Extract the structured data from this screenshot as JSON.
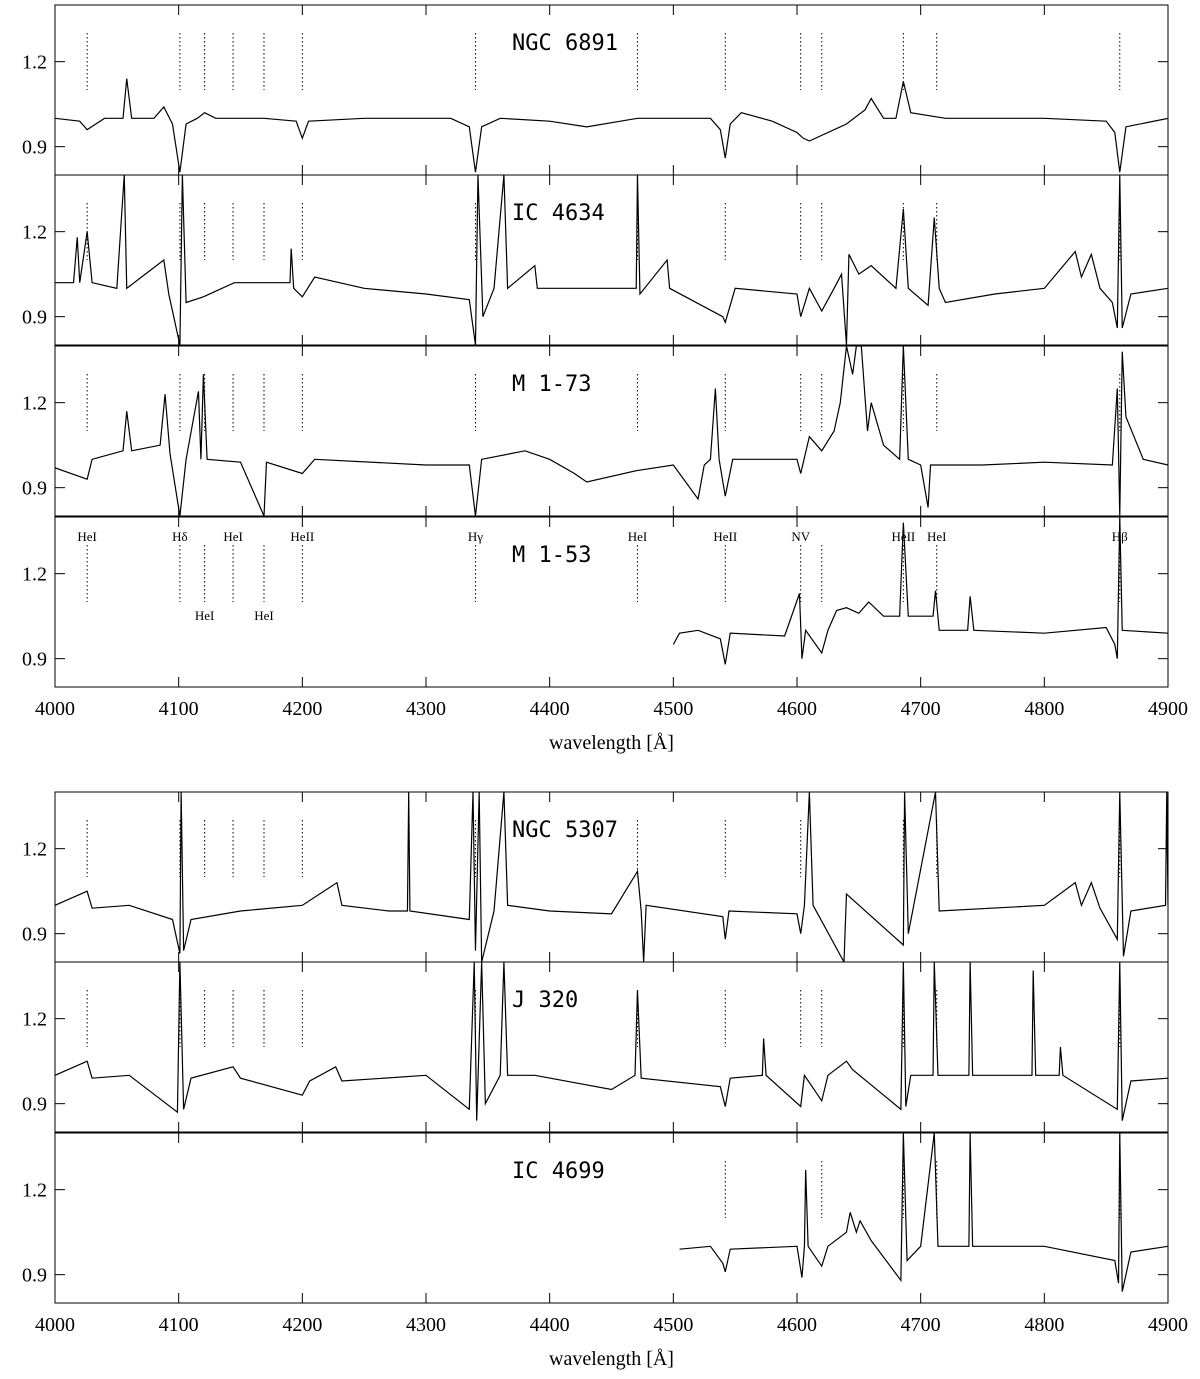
{
  "chart_data": [
    {
      "type": "line",
      "title": "NGC 6891",
      "xlim": [
        4000,
        4900
      ],
      "ylim": [
        0.8,
        1.4
      ],
      "yticks": [
        0.9,
        1.2
      ],
      "xticks": [
        4000,
        4100,
        4200,
        4300,
        4400,
        4500,
        4600,
        4700,
        4800,
        4900
      ],
      "line_markers": [
        4026,
        4101,
        4121,
        4144,
        4169,
        4200,
        4340,
        4471,
        4542,
        4603,
        4620,
        4686,
        4713,
        4861
      ],
      "x": [
        4000,
        4020,
        4026,
        4040,
        4055,
        4058,
        4062,
        4080,
        4088,
        4095,
        4101,
        4106,
        4115,
        4121,
        4130,
        4169,
        4195,
        4200,
        4205,
        4250,
        4320,
        4335,
        4340,
        4345,
        4360,
        4400,
        4430,
        4471,
        4530,
        4538,
        4542,
        4546,
        4555,
        4580,
        4600,
        4605,
        4610,
        4640,
        4655,
        4660,
        4670,
        4680,
        4686,
        4692,
        4720,
        4800,
        4850,
        4857,
        4861,
        4866,
        4900
      ],
      "values": [
        1.0,
        0.99,
        0.96,
        1.0,
        1.0,
        1.14,
        1.0,
        1.0,
        1.04,
        0.98,
        0.81,
        0.98,
        1.0,
        1.02,
        1.0,
        1.0,
        0.99,
        0.93,
        0.99,
        1.0,
        1.0,
        0.97,
        0.81,
        0.97,
        1.0,
        0.99,
        0.97,
        1.0,
        1.0,
        0.96,
        0.86,
        0.98,
        1.02,
        0.99,
        0.95,
        0.93,
        0.92,
        0.98,
        1.03,
        1.07,
        1.0,
        1.0,
        1.13,
        1.02,
        1.0,
        1.0,
        0.99,
        0.95,
        0.81,
        0.97,
        1.0
      ]
    },
    {
      "type": "line",
      "title": "IC 4634",
      "xlim": [
        4000,
        4900
      ],
      "ylim": [
        0.8,
        1.4
      ],
      "yticks": [
        0.9,
        1.2
      ],
      "xticks": [
        4000,
        4100,
        4200,
        4300,
        4400,
        4500,
        4600,
        4700,
        4800,
        4900
      ],
      "line_markers": [
        4026,
        4101,
        4121,
        4144,
        4169,
        4200,
        4340,
        4471,
        4542,
        4603,
        4620,
        4686,
        4713,
        4861
      ],
      "x": [
        4000,
        4015,
        4018,
        4020,
        4026,
        4030,
        4050,
        4056,
        4058,
        4088,
        4092,
        4101,
        4103,
        4106,
        4120,
        4145,
        4190,
        4191,
        4193,
        4200,
        4210,
        4250,
        4300,
        4335,
        4340,
        4342,
        4346,
        4355,
        4363,
        4366,
        4388,
        4390,
        4450,
        4470,
        4471,
        4473,
        4495,
        4497,
        4540,
        4542,
        4550,
        4600,
        4603,
        4610,
        4620,
        4630,
        4636,
        4640,
        4642,
        4650,
        4660,
        4680,
        4686,
        4690,
        4706,
        4711,
        4715,
        4720,
        4760,
        4800,
        4825,
        4830,
        4838,
        4845,
        4855,
        4859,
        4861,
        4863,
        4870,
        4900
      ],
      "values": [
        1.02,
        1.02,
        1.18,
        1.02,
        1.2,
        1.02,
        1.0,
        1.4,
        1.0,
        1.1,
        0.98,
        0.8,
        1.4,
        0.95,
        0.97,
        1.02,
        1.02,
        1.14,
        1.0,
        0.97,
        1.04,
        1.0,
        0.98,
        0.96,
        0.8,
        1.4,
        0.9,
        1.0,
        1.4,
        1.0,
        1.08,
        1.0,
        1.0,
        1.0,
        1.4,
        0.98,
        1.1,
        1.0,
        0.9,
        0.88,
        1.0,
        0.98,
        0.9,
        1.0,
        0.92,
        1.0,
        1.05,
        0.8,
        1.12,
        1.05,
        1.08,
        1.0,
        1.28,
        1.0,
        0.94,
        1.25,
        1.0,
        0.95,
        0.98,
        1.0,
        1.13,
        1.04,
        1.12,
        1.0,
        0.95,
        0.86,
        1.4,
        0.86,
        0.98,
        1.0
      ]
    },
    {
      "type": "line",
      "title": "M 1-73",
      "xlim": [
        4000,
        4900
      ],
      "ylim": [
        0.8,
        1.4
      ],
      "yticks": [
        0.9,
        1.2
      ],
      "xticks": [
        4000,
        4100,
        4200,
        4300,
        4400,
        4500,
        4600,
        4700,
        4800,
        4900
      ],
      "line_markers": [
        4026,
        4101,
        4121,
        4144,
        4169,
        4200,
        4340,
        4471,
        4542,
        4603,
        4620,
        4686,
        4713,
        4861
      ],
      "x": [
        4000,
        4026,
        4030,
        4055,
        4058,
        4062,
        4085,
        4089,
        4093,
        4101,
        4106,
        4116,
        4118,
        4120,
        4123,
        4150,
        4169,
        4171,
        4200,
        4210,
        4300,
        4335,
        4340,
        4345,
        4380,
        4400,
        4420,
        4430,
        4470,
        4500,
        4520,
        4525,
        4530,
        4534,
        4537,
        4542,
        4548,
        4600,
        4603,
        4610,
        4620,
        4630,
        4635,
        4640,
        4645,
        4648,
        4652,
        4657,
        4660,
        4670,
        4683,
        4686,
        4690,
        4700,
        4706,
        4708,
        4750,
        4800,
        4855,
        4859,
        4861,
        4863,
        4866,
        4880,
        4900
      ],
      "values": [
        0.97,
        0.93,
        1.0,
        1.03,
        1.17,
        1.03,
        1.05,
        1.23,
        1.02,
        0.8,
        1.0,
        1.24,
        1.0,
        1.3,
        1.0,
        0.99,
        0.8,
        0.99,
        0.95,
        1.0,
        0.98,
        0.98,
        0.8,
        1.0,
        1.03,
        1.0,
        0.95,
        0.92,
        0.96,
        0.98,
        0.86,
        0.98,
        1.0,
        1.25,
        1.0,
        0.87,
        1.0,
        1.0,
        0.95,
        1.08,
        1.03,
        1.1,
        1.2,
        1.4,
        1.3,
        1.4,
        1.4,
        1.1,
        1.2,
        1.05,
        1.0,
        1.4,
        1.0,
        0.98,
        0.83,
        0.98,
        0.98,
        0.99,
        0.98,
        1.25,
        0.8,
        1.38,
        1.15,
        1.0,
        0.98
      ]
    },
    {
      "type": "line",
      "title": "M 1-53",
      "xlim": [
        4000,
        4900
      ],
      "ylim": [
        0.8,
        1.4
      ],
      "yticks": [
        0.9,
        1.2
      ],
      "xticks": [
        4000,
        4100,
        4200,
        4300,
        4400,
        4500,
        4600,
        4700,
        4800,
        4900
      ],
      "xlabel": "wavelength [Å]",
      "line_markers": [
        4026,
        4101,
        4121,
        4144,
        4169,
        4200,
        4340,
        4471,
        4542,
        4603,
        4620,
        4686,
        4713,
        4861
      ],
      "line_labels": [
        {
          "text": "HeI",
          "x": 4026
        },
        {
          "text": "Hδ",
          "x": 4101
        },
        {
          "text": "HeI",
          "x": 4144
        },
        {
          "text": "HeII",
          "x": 4200
        },
        {
          "text": "Hγ",
          "x": 4340
        },
        {
          "text": "HeI",
          "x": 4471
        },
        {
          "text": "HeII",
          "x": 4542
        },
        {
          "text": "NV",
          "x": 4603
        },
        {
          "text": "HeII",
          "x": 4686
        },
        {
          "text": "HeI",
          "x": 4713
        },
        {
          "text": "Hβ",
          "x": 4861
        }
      ],
      "lower_line_labels": [
        {
          "text": "HeI",
          "x": 4121
        },
        {
          "text": "HeI",
          "x": 4169
        }
      ],
      "x": [
        4500,
        4505,
        4520,
        4538,
        4542,
        4546,
        4590,
        4602,
        4604,
        4607,
        4620,
        4625,
        4632,
        4640,
        4650,
        4658,
        4670,
        4683,
        4686,
        4690,
        4710,
        4712,
        4715,
        4738,
        4740,
        4743,
        4800,
        4850,
        4857,
        4859,
        4861,
        4863,
        4900
      ],
      "values": [
        0.95,
        0.99,
        1.0,
        0.97,
        0.88,
        0.99,
        0.98,
        1.13,
        0.9,
        1.0,
        0.92,
        1.0,
        1.07,
        1.08,
        1.06,
        1.1,
        1.05,
        1.05,
        1.38,
        1.05,
        1.05,
        1.14,
        1.0,
        1.0,
        1.12,
        1.0,
        0.99,
        1.01,
        0.95,
        0.9,
        1.4,
        1.0,
        0.99
      ]
    },
    {
      "type": "line",
      "title": "NGC 5307",
      "xlim": [
        4000,
        4900
      ],
      "ylim": [
        0.8,
        1.4
      ],
      "yticks": [
        0.9,
        1.2
      ],
      "xticks": [
        4000,
        4100,
        4200,
        4300,
        4400,
        4500,
        4600,
        4700,
        4800,
        4900
      ],
      "line_markers": [
        4026,
        4101,
        4121,
        4144,
        4169,
        4200,
        4340,
        4471,
        4542,
        4603,
        4686,
        4713,
        4861
      ],
      "x": [
        4000,
        4026,
        4030,
        4060,
        4095,
        4101,
        4102,
        4104,
        4110,
        4150,
        4200,
        4228,
        4232,
        4270,
        4285,
        4286,
        4287,
        4335,
        4338,
        4340,
        4343,
        4345,
        4355,
        4363,
        4366,
        4400,
        4450,
        4471,
        4474,
        4476,
        4478,
        4540,
        4542,
        4545,
        4600,
        4603,
        4606,
        4610,
        4613,
        4638,
        4640,
        4686,
        4687,
        4690,
        4712,
        4715,
        4800,
        4825,
        4830,
        4838,
        4845,
        4859,
        4861,
        4864,
        4870,
        4898,
        4899,
        4900
      ],
      "values": [
        1.0,
        1.05,
        0.99,
        1.0,
        0.95,
        0.83,
        1.4,
        0.84,
        0.95,
        0.98,
        1.0,
        1.08,
        1.0,
        0.98,
        0.98,
        1.4,
        0.98,
        0.95,
        1.4,
        0.84,
        1.4,
        0.8,
        0.98,
        1.4,
        1.0,
        0.98,
        0.97,
        1.12,
        0.98,
        0.8,
        1.0,
        0.96,
        0.88,
        0.98,
        0.97,
        0.9,
        1.0,
        1.4,
        1.0,
        0.8,
        1.04,
        0.86,
        1.4,
        0.9,
        1.4,
        0.98,
        1.0,
        1.08,
        1.0,
        1.08,
        0.99,
        0.88,
        1.4,
        0.82,
        0.98,
        1.0,
        1.4,
        1.0
      ]
    },
    {
      "type": "line",
      "title": "J 320",
      "xlim": [
        4000,
        4900
      ],
      "ylim": [
        0.8,
        1.4
      ],
      "yticks": [
        0.9,
        1.2
      ],
      "xticks": [
        4000,
        4100,
        4200,
        4300,
        4400,
        4500,
        4600,
        4700,
        4800,
        4900
      ],
      "line_markers": [
        4026,
        4101,
        4121,
        4144,
        4169,
        4200,
        4340,
        4471,
        4542,
        4603,
        4620,
        4686,
        4713,
        4861
      ],
      "x": [
        4000,
        4026,
        4030,
        4060,
        4099,
        4101,
        4104,
        4110,
        4144,
        4150,
        4200,
        4206,
        4227,
        4232,
        4300,
        4335,
        4339,
        4341,
        4345,
        4348,
        4360,
        4363,
        4366,
        4388,
        4450,
        4469,
        4471,
        4474,
        4538,
        4542,
        4546,
        4572,
        4573,
        4575,
        4603,
        4606,
        4620,
        4625,
        4640,
        4645,
        4684,
        4686,
        4688,
        4692,
        4710,
        4711,
        4714,
        4739,
        4740,
        4742,
        4790,
        4791,
        4793,
        4812,
        4813,
        4815,
        4859,
        4861,
        4863,
        4870,
        4900
      ],
      "values": [
        1.0,
        1.05,
        0.99,
        1.0,
        0.87,
        1.4,
        0.88,
        0.99,
        1.03,
        0.99,
        0.93,
        0.98,
        1.03,
        0.98,
        1.0,
        0.88,
        1.4,
        0.84,
        1.4,
        0.9,
        1.0,
        1.4,
        1.0,
        1.0,
        0.95,
        1.0,
        1.3,
        0.99,
        0.96,
        0.89,
        0.99,
        1.0,
        1.13,
        1.0,
        0.89,
        1.0,
        0.91,
        1.0,
        1.05,
        1.02,
        0.88,
        1.4,
        0.89,
        1.0,
        1.0,
        1.4,
        1.0,
        1.0,
        1.4,
        1.0,
        1.0,
        1.37,
        1.0,
        1.0,
        1.1,
        1.0,
        0.88,
        1.4,
        0.84,
        0.98,
        0.99
      ]
    },
    {
      "type": "line",
      "title": "IC 4699",
      "xlim": [
        4000,
        4900
      ],
      "ylim": [
        0.8,
        1.4
      ],
      "yticks": [
        0.9,
        1.2
      ],
      "xticks": [
        4000,
        4100,
        4200,
        4300,
        4400,
        4500,
        4600,
        4700,
        4800,
        4900
      ],
      "xlabel": "wavelength [Å]",
      "line_markers": [
        4542,
        4620,
        4686,
        4713,
        4861
      ],
      "x": [
        4505,
        4530,
        4540,
        4542,
        4546,
        4600,
        4604,
        4606,
        4607,
        4609,
        4620,
        4625,
        4640,
        4643,
        4648,
        4651,
        4660,
        4684,
        4686,
        4689,
        4700,
        4711,
        4714,
        4739,
        4740,
        4742,
        4800,
        4857,
        4860,
        4861,
        4863,
        4870,
        4900
      ],
      "values": [
        0.99,
        1.0,
        0.94,
        0.91,
        0.99,
        1.0,
        0.89,
        1.0,
        1.27,
        1.0,
        0.93,
        1.0,
        1.05,
        1.12,
        1.05,
        1.09,
        1.02,
        0.88,
        1.4,
        0.95,
        1.0,
        1.4,
        1.0,
        1.0,
        1.4,
        1.0,
        1.0,
        0.95,
        0.87,
        1.4,
        0.84,
        0.98,
        1.0
      ]
    }
  ]
}
